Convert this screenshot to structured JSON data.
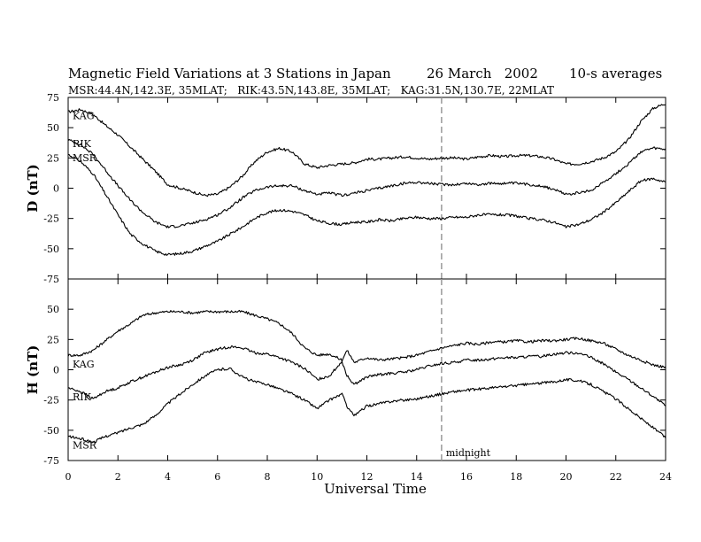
{
  "chart_data": {
    "type": "line",
    "title": "Magnetic Field Variations at 3 Stations in Japan",
    "date": "26 March   2002",
    "averaging": "10-s averages",
    "subtitle": "MSR:44.4N,142.3E, 35MLAT;   RIK:43.5N,143.8E, 35MLAT;   KAG:31.5N,130.7E, 22MLAT",
    "xlabel": "Universal Time",
    "xlim": [
      0,
      24
    ],
    "xticks": [
      0,
      2,
      4,
      6,
      8,
      10,
      12,
      14,
      16,
      18,
      20,
      22,
      24
    ],
    "grid": false,
    "annotation": {
      "text": "midnight",
      "x": 15,
      "style": "dashed vertical line"
    },
    "panels": [
      {
        "ylabel": "D (nT)",
        "ylim": [
          -75,
          75
        ],
        "yticks": [
          -75,
          -50,
          -25,
          0,
          25,
          50,
          75
        ],
        "series": [
          {
            "name": "KAG",
            "x": [
              0,
              0.5,
              1,
              1.5,
              2,
              2.5,
              3,
              3.5,
              4,
              4.5,
              5,
              5.5,
              6,
              6.5,
              7,
              7.5,
              8,
              8.5,
              9,
              9.5,
              10,
              10.5,
              11,
              11.5,
              12,
              12.5,
              13,
              13.5,
              14,
              14.5,
              15,
              15.5,
              16,
              16.5,
              17,
              17.5,
              18,
              18.5,
              19,
              19.5,
              20,
              20.5,
              21,
              21.5,
              22,
              22.5,
              23,
              23.5,
              24
            ],
            "values": [
              63,
              65,
              61,
              52,
              44,
              34,
              24,
              14,
              3,
              0,
              -3,
              -6,
              -5,
              1,
              10,
              22,
              30,
              33,
              30,
              20,
              17,
              19,
              20,
              21,
              24,
              24,
              25,
              26,
              25,
              24,
              25,
              25,
              24,
              26,
              27,
              26,
              27,
              27,
              26,
              24,
              20,
              20,
              22,
              25,
              30,
              40,
              55,
              66,
              70
            ]
          },
          {
            "name": "RIK",
            "x": [
              0,
              0.5,
              1,
              1.5,
              2,
              2.5,
              3,
              3.5,
              4,
              4.5,
              5,
              5.5,
              6,
              6.5,
              7,
              7.5,
              8,
              8.5,
              9,
              9.5,
              10,
              10.5,
              11,
              11.5,
              12,
              12.5,
              13,
              13.5,
              14,
              14.5,
              15,
              15.5,
              16,
              16.5,
              17,
              17.5,
              18,
              18.5,
              19,
              19.5,
              20,
              20.5,
              21,
              21.5,
              22,
              22.5,
              23,
              23.5,
              24
            ],
            "values": [
              40,
              36,
              28,
              15,
              2,
              -10,
              -20,
              -28,
              -32,
              -31,
              -29,
              -26,
              -22,
              -16,
              -8,
              -2,
              1,
              2,
              2,
              -2,
              -5,
              -4,
              -6,
              -4,
              -2,
              0,
              2,
              4,
              5,
              4,
              3,
              3,
              4,
              3,
              4,
              4,
              4,
              3,
              2,
              -1,
              -5,
              -4,
              -2,
              5,
              12,
              20,
              30,
              33,
              32
            ]
          },
          {
            "name": "MSR",
            "x": [
              0,
              0.5,
              1,
              1.5,
              2,
              2.5,
              3,
              3.5,
              4,
              4.5,
              5,
              5.5,
              6,
              6.5,
              7,
              7.5,
              8,
              8.5,
              9,
              9.5,
              10,
              10.5,
              11,
              11.5,
              12,
              12.5,
              13,
              13.5,
              14,
              14.5,
              15,
              15.5,
              16,
              16.5,
              17,
              17.5,
              18,
              18.5,
              19,
              19.5,
              20,
              20.5,
              21,
              21.5,
              22,
              22.5,
              23,
              23.5,
              24
            ],
            "values": [
              28,
              22,
              12,
              -5,
              -22,
              -38,
              -46,
              -52,
              -55,
              -54,
              -52,
              -48,
              -44,
              -38,
              -32,
              -25,
              -20,
              -18,
              -19,
              -22,
              -27,
              -29,
              -30,
              -28,
              -28,
              -26,
              -27,
              -25,
              -24,
              -25,
              -25,
              -24,
              -24,
              -22,
              -22,
              -22,
              -23,
              -25,
              -26,
              -28,
              -32,
              -30,
              -26,
              -20,
              -12,
              -3,
              6,
              8,
              5
            ]
          }
        ]
      },
      {
        "ylabel": "H (nT)",
        "ylim": [
          -75,
          75
        ],
        "yticks": [
          -75,
          -50,
          -25,
          0,
          25,
          50
        ],
        "series": [
          {
            "name": "KAG",
            "x": [
              0,
              0.5,
              1,
              1.5,
              2,
              2.5,
              3,
              3.5,
              4,
              4.5,
              5,
              5.5,
              6,
              6.5,
              7,
              7.5,
              8,
              8.5,
              9,
              9.5,
              10,
              10.5,
              11,
              11.2,
              11.5,
              12,
              12.5,
              13,
              13.5,
              14,
              14.5,
              15,
              15.5,
              16,
              16.5,
              17,
              17.5,
              18,
              18.5,
              19,
              19.5,
              20,
              20.5,
              21,
              21.5,
              22,
              22.5,
              23,
              23.5,
              24
            ],
            "values": [
              12,
              12,
              16,
              24,
              32,
              38,
              45,
              47,
              48,
              48,
              47,
              48,
              48,
              48,
              48,
              45,
              42,
              38,
              30,
              18,
              12,
              13,
              8,
              16,
              6,
              10,
              8,
              9,
              10,
              12,
              15,
              18,
              20,
              22,
              21,
              23,
              23,
              24,
              23,
              24,
              24,
              25,
              26,
              24,
              22,
              17,
              12,
              8,
              4,
              2
            ]
          },
          {
            "name": "RIK",
            "x": [
              0,
              0.5,
              1,
              1.5,
              2,
              2.5,
              3,
              3.5,
              4,
              4.5,
              5,
              5.5,
              6,
              6.5,
              7,
              7.5,
              8,
              8.5,
              9,
              9.5,
              10,
              10.5,
              11,
              11.2,
              11.5,
              12,
              12.5,
              13,
              13.5,
              14,
              14.5,
              15,
              15.5,
              16,
              16.5,
              17,
              17.5,
              18,
              18.5,
              19,
              19.5,
              20,
              20.5,
              21,
              21.5,
              22,
              22.5,
              23,
              23.5,
              24
            ],
            "values": [
              -15,
              -18,
              -24,
              -18,
              -15,
              -10,
              -6,
              -2,
              2,
              4,
              8,
              14,
              17,
              19,
              18,
              14,
              13,
              10,
              6,
              1,
              -8,
              -5,
              7,
              -5,
              -12,
              -6,
              -4,
              -3,
              -2,
              0,
              3,
              5,
              6,
              8,
              8,
              9,
              10,
              10,
              11,
              11,
              13,
              14,
              14,
              10,
              5,
              -2,
              -8,
              -15,
              -22,
              -30
            ]
          },
          {
            "name": "MSR",
            "x": [
              0,
              0.5,
              1,
              1.5,
              2,
              2.5,
              3,
              3.5,
              4,
              4.5,
              5,
              5.5,
              6,
              6.5,
              7,
              7.5,
              8,
              8.5,
              9,
              9.5,
              10,
              10.5,
              11,
              11.2,
              11.5,
              12,
              12.5,
              13,
              13.5,
              14,
              14.5,
              15,
              15.5,
              16,
              16.5,
              17,
              17.5,
              18,
              18.5,
              19,
              19.5,
              20,
              20.5,
              21,
              21.5,
              22,
              22.5,
              23,
              23.5,
              24
            ],
            "values": [
              -55,
              -57,
              -60,
              -55,
              -52,
              -48,
              -45,
              -38,
              -28,
              -20,
              -12,
              -5,
              0,
              1,
              -6,
              -10,
              -12,
              -16,
              -20,
              -25,
              -32,
              -25,
              -20,
              -30,
              -38,
              -30,
              -28,
              -26,
              -25,
              -24,
              -22,
              -20,
              -18,
              -17,
              -16,
              -15,
              -14,
              -13,
              -12,
              -11,
              -10,
              -8,
              -9,
              -12,
              -18,
              -24,
              -32,
              -40,
              -48,
              -56
            ]
          }
        ]
      }
    ]
  }
}
